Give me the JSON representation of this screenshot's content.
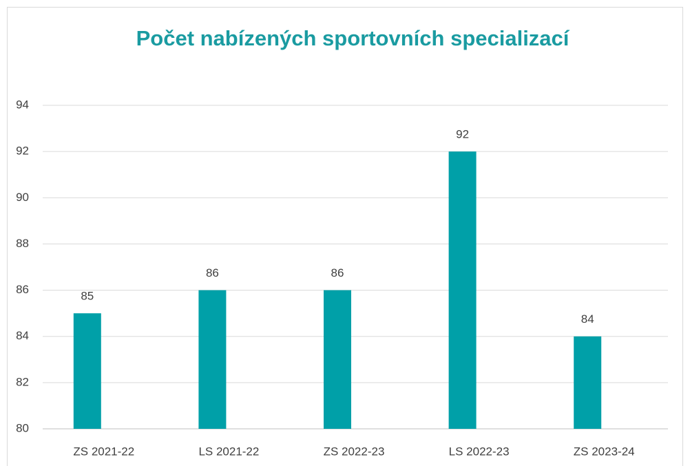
{
  "chart_data": {
    "type": "bar",
    "title": "Počet nabízených sportovních specializací",
    "categories": [
      "ZS 2021-22",
      "LS 2021-22",
      "ZS 2022-23",
      "LS 2022-23",
      "ZS 2023-24"
    ],
    "values": [
      85,
      86,
      86,
      92,
      84
    ],
    "color": "#00a0a8",
    "ylim": [
      80,
      94
    ],
    "yticks": [
      80,
      82,
      84,
      86,
      88,
      90,
      92,
      94
    ],
    "grid": true
  }
}
